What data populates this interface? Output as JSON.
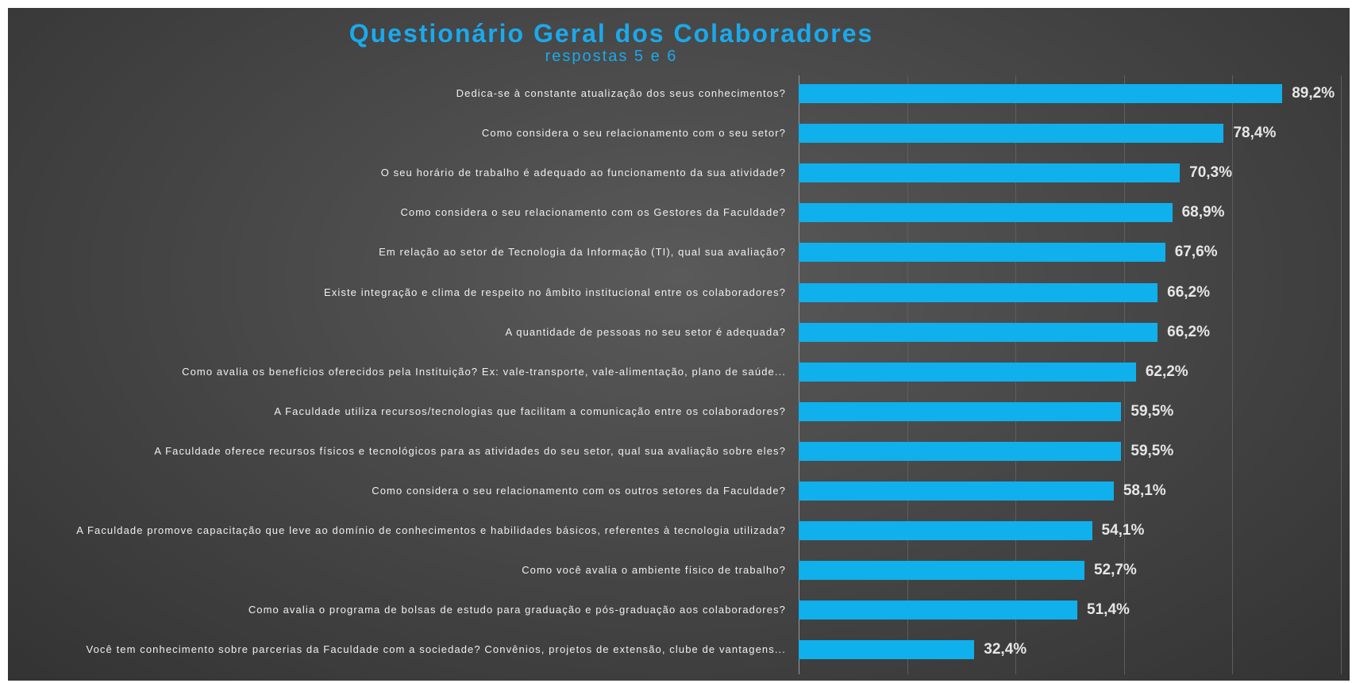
{
  "chart_data": {
    "type": "barh",
    "title": "Questionário Geral dos Colaboradores",
    "subtitle": "respostas 5 e 6",
    "categories": [
      "Dedica-se à constante atualização dos seus conhecimentos?",
      "Como considera o seu relacionamento com o seu setor?",
      "O seu horário de trabalho é adequado ao funcionamento da sua atividade?",
      "Como considera o seu relacionamento com os Gestores da Faculdade?",
      "Em relação ao setor de Tecnologia da Informação (TI), qual sua avaliação?",
      "Existe integração e clima de respeito no âmbito institucional entre os colaboradores?",
      "A quantidade de pessoas no seu setor é adequada?",
      "Como avalia os benefícios oferecidos pela Instituição? Ex: vale-transporte, vale-alimentação, plano de saúde...",
      "A Faculdade utiliza recursos/tecnologias que facilitam a comunicação entre os colaboradores?",
      "A Faculdade oferece recursos físicos e tecnológicos para as atividades do seu setor, qual sua avaliação sobre eles?",
      "Como considera o seu relacionamento com os outros setores da Faculdade?",
      "A Faculdade promove capacitação que leve ao domínio de conhecimentos e habilidades básicos, referentes à tecnologia utilizada?",
      "Como você avalia o ambiente físico de trabalho?",
      "Como avalia o programa de bolsas de estudo para graduação e pós-graduação aos colaboradores?",
      "Você tem conhecimento sobre parcerias da Faculdade com a sociedade? Convênios, projetos de extensão, clube de vantagens..."
    ],
    "values": [
      89.2,
      78.4,
      70.3,
      68.9,
      67.6,
      66.2,
      66.2,
      62.2,
      59.5,
      59.5,
      58.1,
      54.1,
      52.7,
      51.4,
      32.4
    ],
    "value_labels": [
      "89,2%",
      "78,4%",
      "70,3%",
      "68,9%",
      "67,6%",
      "66,2%",
      "66,2%",
      "62,2%",
      "59,5%",
      "59,5%",
      "58,1%",
      "54,1%",
      "52,7%",
      "51,4%",
      "32,4%"
    ],
    "color": "#0fb0ec",
    "xlim": [
      0,
      100
    ],
    "xticks": [
      0,
      20,
      40,
      60,
      80,
      100
    ],
    "grid": true
  }
}
